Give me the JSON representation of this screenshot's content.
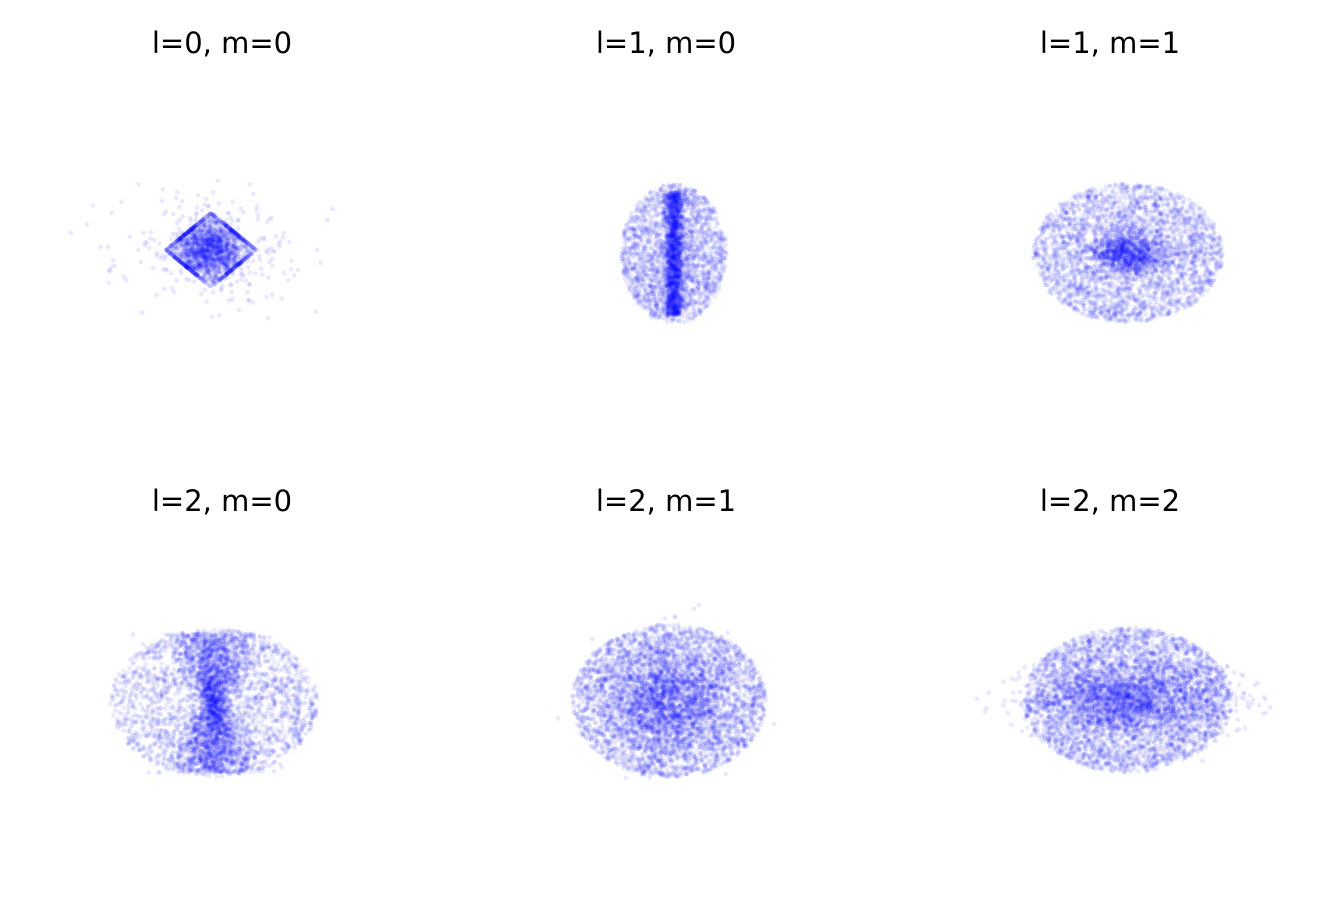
{
  "chart_data": [
    {
      "type": "scatter",
      "title": "l=0, m=0",
      "l": 0,
      "m": 0,
      "color": "#0000ff",
      "axes": "off",
      "grid": false,
      "distribution": {
        "sx": 0.28,
        "sz": 0.28,
        "core_fraction": 0.85,
        "halo_sx": 0.75,
        "halo_sz": 0.55,
        "n": 2200
      },
      "xlim": [
        -1,
        1
      ],
      "ylim": [
        -1,
        1
      ]
    },
    {
      "type": "scatter",
      "title": "l=1, m=0",
      "l": 1,
      "m": 0,
      "color": "#0000ff",
      "axes": "off",
      "grid": false,
      "distribution": {
        "sx": 0.55,
        "sz": 0.85,
        "core_fraction": 0.45,
        "core_sx": 0.05,
        "core_sz": 0.75,
        "n": 3500
      },
      "xlim": [
        -1,
        1
      ],
      "ylim": [
        -1,
        1
      ]
    },
    {
      "type": "scatter",
      "title": "l=1, m=1",
      "l": 1,
      "m": 1,
      "color": "#0000ff",
      "axes": "off",
      "grid": false,
      "distribution": {
        "sx": 0.95,
        "sz": 0.85,
        "core_fraction": 0.25,
        "core_sx": 0.2,
        "core_sz": 0.12,
        "n": 3800
      },
      "xlim": [
        -1,
        1
      ],
      "ylim": [
        -1,
        1
      ]
    },
    {
      "type": "scatter",
      "title": "l=2, m=0",
      "l": 2,
      "m": 0,
      "color": "#0000ff",
      "axes": "off",
      "grid": false,
      "distribution": {
        "sx": 1.0,
        "sz": 0.9,
        "core_fraction": 0.55,
        "core_sx": 0.18,
        "core_sz": 0.85,
        "n": 4500
      },
      "xlim": [
        -1,
        1
      ],
      "ylim": [
        -1,
        1
      ]
    },
    {
      "type": "scatter",
      "title": "l=2, m=1",
      "l": 2,
      "m": 1,
      "color": "#0000ff",
      "axes": "off",
      "grid": false,
      "distribution": {
        "sx": 0.95,
        "sz": 0.9,
        "core_fraction": 0.35,
        "core_sx": 0.3,
        "core_sz": 0.3,
        "n": 5200
      },
      "xlim": [
        -1,
        1
      ],
      "ylim": [
        -1,
        1
      ]
    },
    {
      "type": "scatter",
      "title": "l=2, m=2",
      "l": 2,
      "m": 2,
      "color": "#0000ff",
      "axes": "off",
      "grid": false,
      "distribution": {
        "sx": 1.0,
        "sz": 0.85,
        "core_fraction": 0.35,
        "core_sx": 0.45,
        "core_sz": 0.2,
        "n": 5600
      },
      "xlim": [
        -1,
        1
      ],
      "ylim": [
        -1,
        1
      ]
    }
  ]
}
